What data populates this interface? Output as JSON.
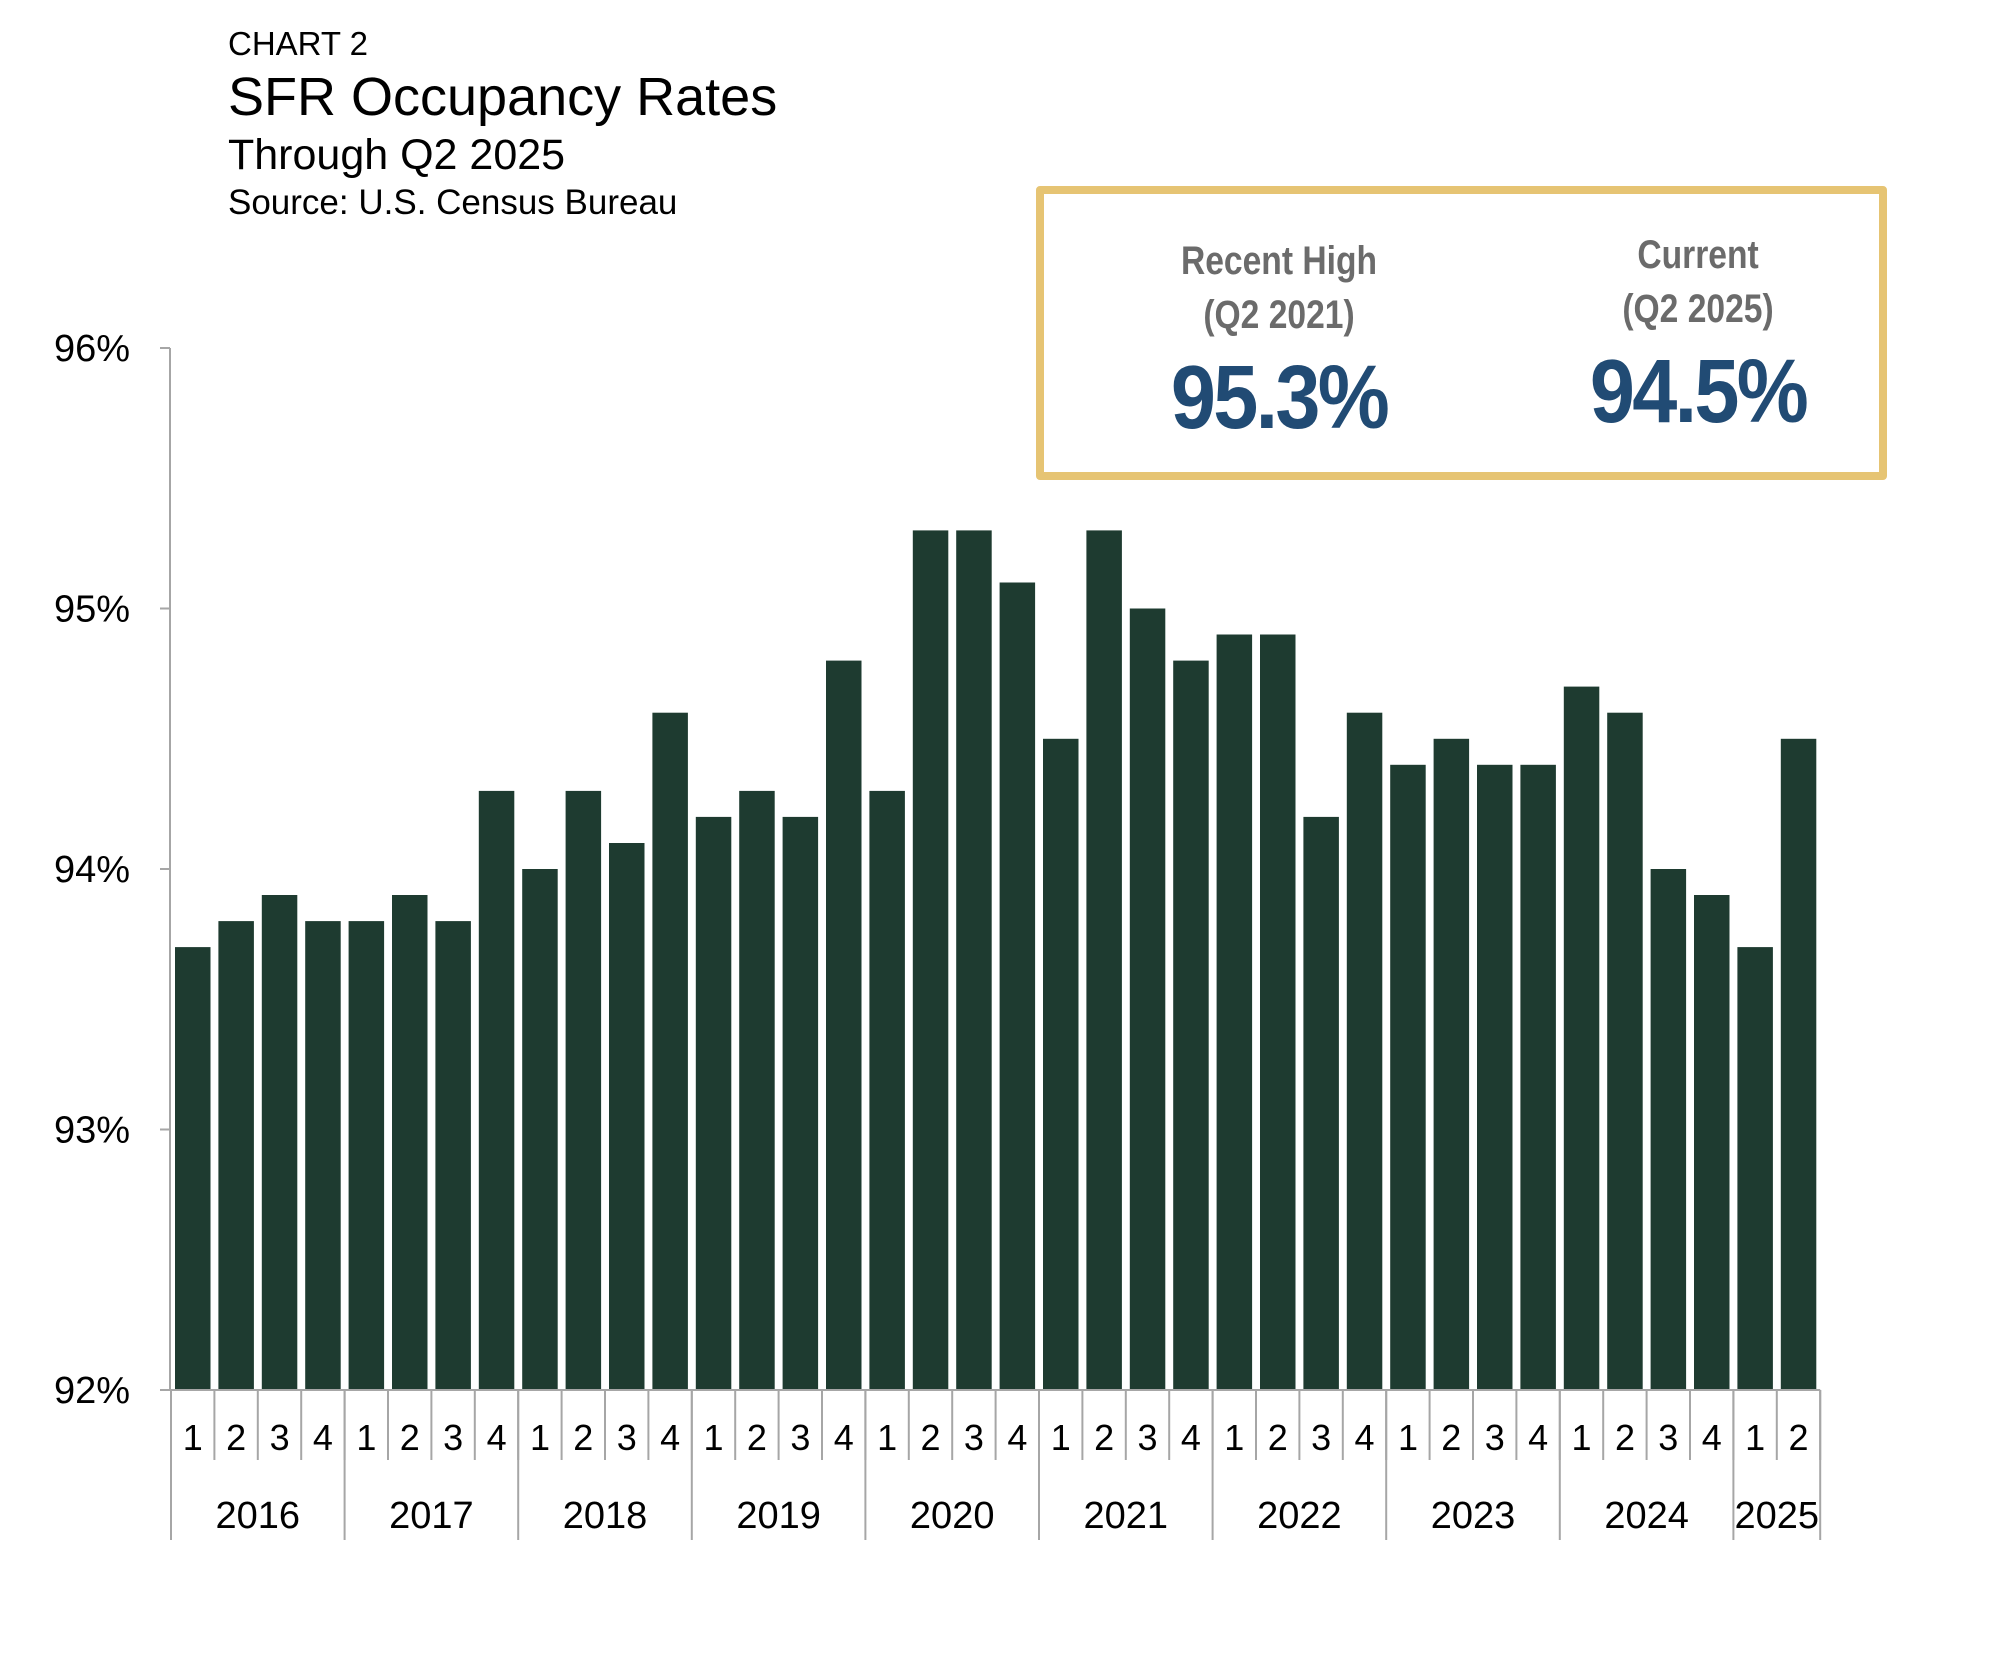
{
  "header": {
    "chart_number": "CHART 2",
    "title": "SFR Occupancy Rates",
    "subtitle": "Through Q2 2025",
    "source": "Source: U.S. Census Bureau"
  },
  "callout": {
    "recent_high": {
      "label_line1": "Recent High",
      "label_line2": "(Q2 2021)",
      "value": "95.3%"
    },
    "current": {
      "label_line1": "Current",
      "label_line2": "(Q2 2025)",
      "value": "94.5%"
    }
  },
  "colors": {
    "bar": "#1e3b30",
    "axis": "#a6a6a6",
    "callout_border": "#e6c473",
    "callout_value": "#214b74",
    "callout_label": "#6b6b6b"
  },
  "chart_data": {
    "type": "bar",
    "title": "SFR Occupancy Rates",
    "subtitle": "Through Q2 2025",
    "xlabel": "",
    "ylabel": "",
    "ylim": [
      92,
      96
    ],
    "yticks": [
      92,
      93,
      94,
      95,
      96
    ],
    "ytick_labels": [
      "92%",
      "93%",
      "94%",
      "95%",
      "96%"
    ],
    "grid": false,
    "categories": [
      "2016 Q1",
      "2016 Q2",
      "2016 Q3",
      "2016 Q4",
      "2017 Q1",
      "2017 Q2",
      "2017 Q3",
      "2017 Q4",
      "2018 Q1",
      "2018 Q2",
      "2018 Q3",
      "2018 Q4",
      "2019 Q1",
      "2019 Q2",
      "2019 Q3",
      "2019 Q4",
      "2020 Q1",
      "2020 Q2",
      "2020 Q3",
      "2020 Q4",
      "2021 Q1",
      "2021 Q2",
      "2021 Q3",
      "2021 Q4",
      "2022 Q1",
      "2022 Q2",
      "2022 Q3",
      "2022 Q4",
      "2023 Q1",
      "2023 Q2",
      "2023 Q3",
      "2023 Q4",
      "2024 Q1",
      "2024 Q2",
      "2024 Q3",
      "2024 Q4",
      "2025 Q1",
      "2025 Q2"
    ],
    "quarter_labels": [
      "1",
      "2",
      "3",
      "4",
      "1",
      "2",
      "3",
      "4",
      "1",
      "2",
      "3",
      "4",
      "1",
      "2",
      "3",
      "4",
      "1",
      "2",
      "3",
      "4",
      "1",
      "2",
      "3",
      "4",
      "1",
      "2",
      "3",
      "4",
      "1",
      "2",
      "3",
      "4",
      "1",
      "2",
      "3",
      "4",
      "1",
      "2"
    ],
    "year_groups": [
      {
        "year": "2016",
        "quarters": 4
      },
      {
        "year": "2017",
        "quarters": 4
      },
      {
        "year": "2018",
        "quarters": 4
      },
      {
        "year": "2019",
        "quarters": 4
      },
      {
        "year": "2020",
        "quarters": 4
      },
      {
        "year": "2021",
        "quarters": 4
      },
      {
        "year": "2022",
        "quarters": 4
      },
      {
        "year": "2023",
        "quarters": 4
      },
      {
        "year": "2024",
        "quarters": 4
      },
      {
        "year": "2025",
        "quarters": 2
      }
    ],
    "values": [
      93.7,
      93.8,
      93.9,
      93.8,
      93.8,
      93.9,
      93.8,
      94.3,
      94.0,
      94.3,
      94.1,
      94.6,
      94.2,
      94.3,
      94.2,
      94.8,
      94.3,
      95.3,
      95.3,
      95.1,
      94.5,
      95.3,
      95.0,
      94.8,
      94.9,
      94.9,
      94.2,
      94.6,
      94.4,
      94.5,
      94.4,
      94.4,
      94.7,
      94.6,
      94.0,
      93.9,
      93.7,
      94.5
    ]
  }
}
